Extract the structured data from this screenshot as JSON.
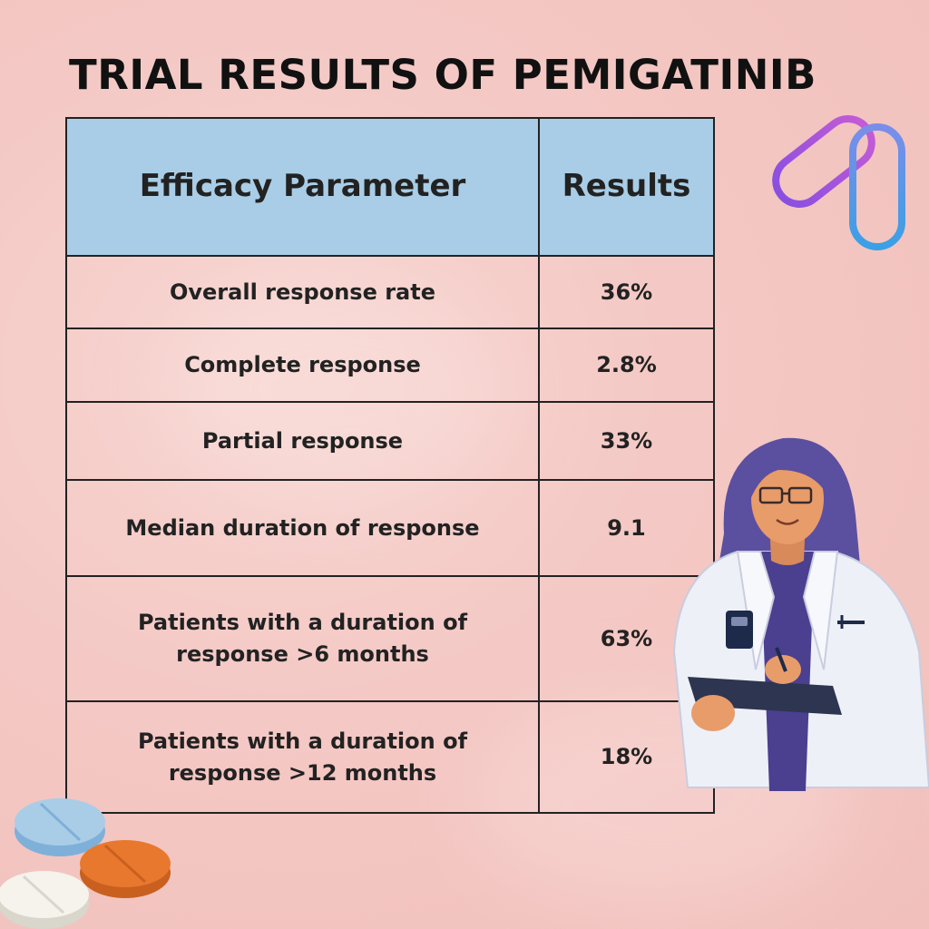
{
  "title": "TRIAL RESULTS OF PEMIGATINIB",
  "table": {
    "headers": [
      "Efficacy Parameter",
      "Results"
    ],
    "rows": [
      {
        "parameter": "Overall response rate",
        "result": "36%"
      },
      {
        "parameter": "Complete response",
        "result": "2.8%"
      },
      {
        "parameter": "Partial response",
        "result": "33%"
      },
      {
        "parameter": "Median duration of response",
        "result": "9.1"
      },
      {
        "parameter_lines": [
          "Patients with a duration of",
          "response >6 months"
        ],
        "result": "63%"
      },
      {
        "parameter_lines": [
          "Patients with a duration of",
          "response  >12 months"
        ],
        "result": "18%"
      }
    ]
  },
  "colors": {
    "header_fill": "#a9cde6",
    "background": "#f4c8c4",
    "text": "#222222"
  },
  "illustrations": [
    "capsules-icon",
    "doctor-illustration",
    "tablets-icon"
  ]
}
